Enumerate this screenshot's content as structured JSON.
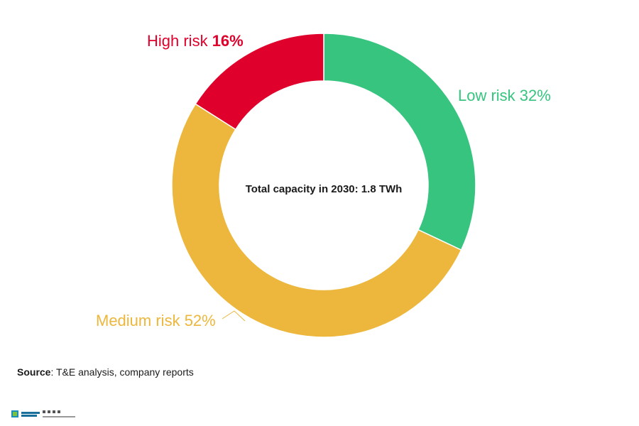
{
  "chart_data": {
    "type": "pie",
    "donut": true,
    "center_text": "Total capacity in 2030: 1.8 TWh",
    "slices": [
      {
        "name": "Low risk",
        "value": 32,
        "value_label": "32%",
        "color": "#37c47f",
        "label_color": "#37c47f"
      },
      {
        "name": "Medium risk",
        "value": 52,
        "value_label": "52%",
        "color": "#ecb73c",
        "label_color": "#ecb73c"
      },
      {
        "name": "High risk",
        "value": 16,
        "value_label": "16%",
        "color": "#e0002c",
        "label_color": "#e0002c"
      }
    ],
    "start": "top",
    "direction": "clockwise"
  },
  "source": {
    "prefix": "Source",
    "text": ": T&E analysis, company reports"
  },
  "logo": {
    "icon": "transport-environment-logo"
  }
}
